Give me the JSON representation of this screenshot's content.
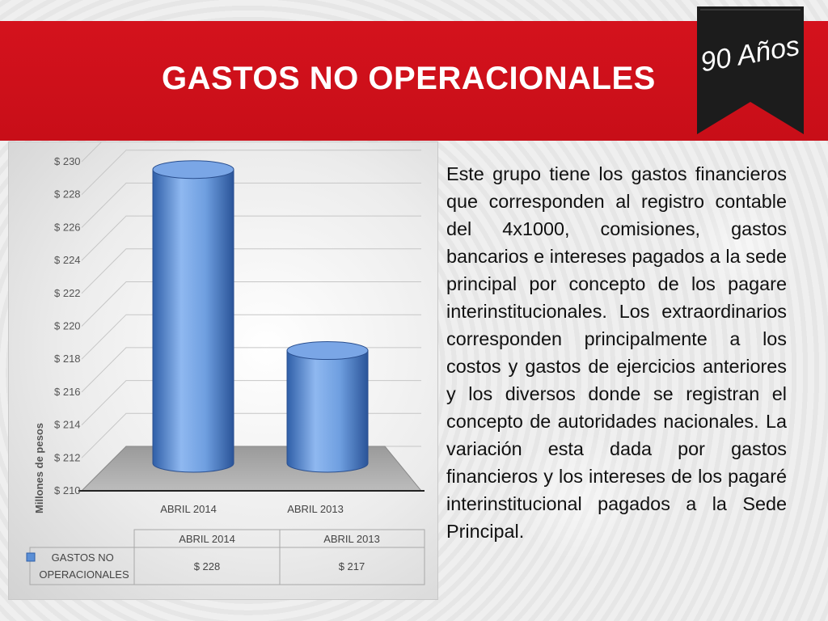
{
  "slide": {
    "title": "GASTOS NO OPERACIONALES",
    "badge_text": "90 Años",
    "accent_color": "#d4121d",
    "badge_color": "#1c1c1c",
    "body_text": "Este grupo tiene los gastos financieros que  corresponden al registro contable del 4x1000, comisiones, gastos bancarios e intereses pagados a la sede principal por concepto de los pagare interinstitucionales. Los extraordinarios corresponden principalmente a los costos y gastos de ejercicios anteriores y los diversos donde se registran el concepto de autoridades nacionales. La variación esta dada por gastos financieros y los intereses de los pagaré interinstitucional pagados a la Sede Principal."
  },
  "chart_data": {
    "type": "bar",
    "style": "3d-cylinder",
    "categories": [
      "ABRIL 2014",
      "ABRIL 2013"
    ],
    "series": [
      {
        "name": "GASTOS NO OPERACIONALES",
        "values": [
          228,
          217
        ],
        "color": "#5b8fd6"
      }
    ],
    "ylabel": "Millones de pesos",
    "ylim": [
      210,
      230
    ],
    "yticks": [
      210,
      212,
      214,
      216,
      218,
      220,
      222,
      224,
      226,
      228,
      230
    ],
    "ytick_labels": [
      "$ 210",
      "$ 212",
      "$ 214",
      "$ 216",
      "$ 218",
      "$ 220",
      "$ 222",
      "$ 224",
      "$ 226",
      "$ 228",
      "$ 230"
    ],
    "grid": true,
    "legend": "data-table-below",
    "data_table": {
      "headers": [
        "ABRIL 2014",
        "ABRIL 2013"
      ],
      "series_label": "GASTOS NO OPERACIONALES",
      "values": [
        "$ 228",
        "$ 217"
      ]
    }
  }
}
